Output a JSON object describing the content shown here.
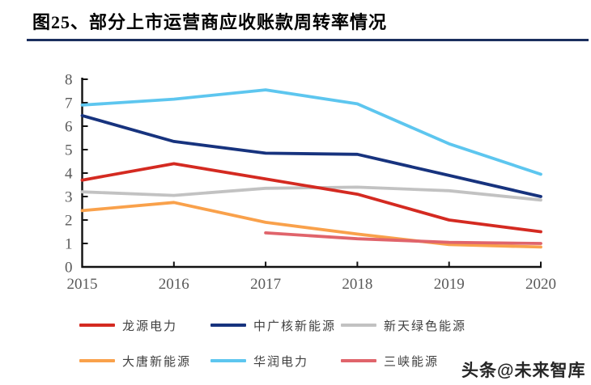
{
  "header": {
    "title": "图25、部分上市运营商应收账款周转率情况"
  },
  "watermark": "头条@未来智库",
  "chart_data": {
    "type": "line",
    "title": "部分上市运营商应收账款周转率情况",
    "categories": [
      "2015",
      "2016",
      "2017",
      "2018",
      "2019",
      "2020"
    ],
    "xlabel": "",
    "ylabel": "",
    "ylim": [
      0,
      8
    ],
    "y_ticks": [
      0,
      1,
      2,
      3,
      4,
      5,
      6,
      7,
      8
    ],
    "grid": "off",
    "legend_position": "bottom",
    "series": [
      {
        "name": "龙源电力",
        "color": "#D42A21",
        "values": [
          3.7,
          4.4,
          3.75,
          3.1,
          2.0,
          1.5
        ]
      },
      {
        "name": "中广核新能源",
        "color": "#17337E",
        "values": [
          6.45,
          5.35,
          4.85,
          4.8,
          3.9,
          3.0
        ]
      },
      {
        "name": "新天绿色能源",
        "color": "#C2C2C2",
        "values": [
          3.2,
          3.05,
          3.35,
          3.4,
          3.25,
          2.85
        ]
      },
      {
        "name": "大唐新能源",
        "color": "#F9A14B",
        "values": [
          2.4,
          2.75,
          1.9,
          1.4,
          0.95,
          0.85
        ]
      },
      {
        "name": "华润电力",
        "color": "#5DC6EF",
        "values": [
          6.9,
          7.15,
          7.55,
          6.95,
          5.25,
          3.95
        ]
      },
      {
        "name": "三峡能源",
        "color": "#E0646B",
        "values": [
          null,
          null,
          1.45,
          1.2,
          1.05,
          1.0
        ]
      }
    ],
    "draw_order": [
      2,
      1,
      3,
      0,
      5,
      4
    ]
  }
}
